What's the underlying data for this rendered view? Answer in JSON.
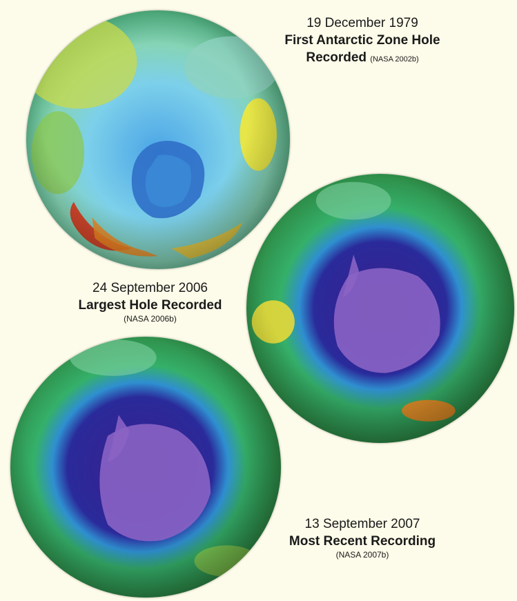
{
  "panels": [
    {
      "date": "19 December 1979",
      "headline_line1": "First Antarctic Zone Hole",
      "headline_line2": "Recorded",
      "citation": "(NASA 2002b)",
      "image_description": "ozone-map-1979"
    },
    {
      "date": "24 September 2006",
      "headline": "Largest Hole Recorded",
      "citation": "(NASA 2006b)",
      "image_description": "ozone-map-2006"
    },
    {
      "date": "13 September 2007",
      "headline": "Most Recent Recording",
      "citation": "(NASA 2007b)",
      "image_description": "ozone-map-2007"
    }
  ],
  "colors": {
    "background": "#fdfbe9",
    "ozone_high": "#d9361c",
    "ozone_mid": "#e6e03a",
    "ozone_normal": "#2f9f4a",
    "ozone_low": "#2f7fd0",
    "ozone_hole": "#3a1f8f",
    "antarctica": "#8a63c4"
  }
}
